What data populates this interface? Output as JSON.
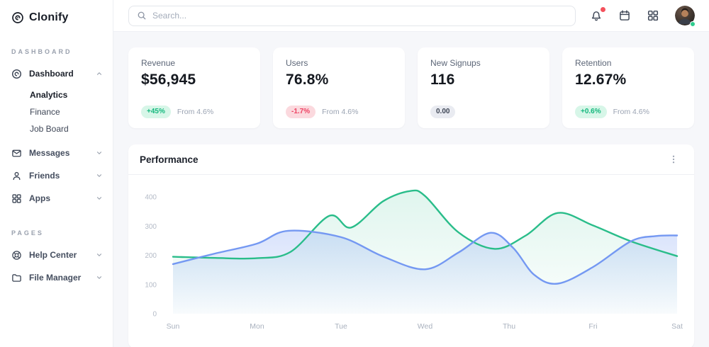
{
  "brand": {
    "name": "Clonify"
  },
  "topbar": {
    "search": {
      "placeholder": "Search...",
      "icon": "search-icon"
    },
    "icons": [
      "bell-icon",
      "calendar-icon",
      "apps-grid-icon",
      "avatar"
    ],
    "has_notification": true,
    "user_status": "online"
  },
  "sidebar": {
    "sections": [
      {
        "label": "DASHBOARD",
        "items": [
          {
            "label": "Dashboard",
            "icon": "dashboard-icon",
            "state": "expanded",
            "active": true,
            "children": [
              "Analytics",
              "Finance",
              "Job Board"
            ],
            "active_child": "Analytics"
          },
          {
            "label": "Messages",
            "icon": "mail-icon",
            "state": "collapsed"
          },
          {
            "label": "Friends",
            "icon": "user-icon",
            "state": "collapsed"
          },
          {
            "label": "Apps",
            "icon": "grid-icon",
            "state": "collapsed"
          }
        ]
      },
      {
        "label": "PAGES",
        "items": [
          {
            "label": "Help Center",
            "icon": "lifebuoy-icon",
            "state": "collapsed"
          },
          {
            "label": "File Manager",
            "icon": "folder-icon",
            "state": "collapsed"
          }
        ]
      }
    ]
  },
  "cards": [
    {
      "title": "Revenue",
      "value": "$56,945",
      "badge": "+45%",
      "badge_type": "positive",
      "note": "From 4.6%"
    },
    {
      "title": "Users",
      "value": "76.8%",
      "badge": "-1.7%",
      "badge_type": "negative",
      "note": "From 4.6%"
    },
    {
      "title": "New Signups",
      "value": "116",
      "badge": "0.00",
      "badge_type": "neutral",
      "note": ""
    },
    {
      "title": "Retention",
      "value": "12.67%",
      "badge": "+0.6%",
      "badge_type": "positive",
      "note": "From 4.6%"
    }
  ],
  "performance": {
    "title": "Performance",
    "menu_icon": "kebab-menu-icon"
  },
  "colors": {
    "series_green": "#2abd8a",
    "series_blue": "#7498f2",
    "positive": "#14b87d",
    "negative": "#ee4263",
    "notification_dot": "#f4515c",
    "online_dot": "#2fcc8e"
  },
  "chart_data": {
    "type": "area",
    "title": "Performance",
    "x_labels": [
      "Sun",
      "Mon",
      "Tue",
      "Wed",
      "Thu",
      "Fri",
      "Sat"
    ],
    "yticks": [
      0,
      100,
      200,
      300,
      400
    ],
    "ylim": [
      0,
      475
    ],
    "grid": false,
    "legend": "none",
    "series": [
      {
        "name": "green",
        "color": "#2abd8a",
        "fill_opacity": [
          0.15,
          0.01
        ],
        "points": [
          [
            0,
            195
          ],
          [
            0.5,
            191
          ],
          [
            1,
            190
          ],
          [
            1.4,
            212
          ],
          [
            1.86,
            335
          ],
          [
            2.12,
            295
          ],
          [
            2.5,
            385
          ],
          [
            2.82,
            420
          ],
          [
            3,
            403
          ],
          [
            3.4,
            278
          ],
          [
            3.83,
            222
          ],
          [
            4.2,
            268
          ],
          [
            4.58,
            345
          ],
          [
            5,
            302
          ],
          [
            5.45,
            248
          ],
          [
            6,
            197
          ]
        ]
      },
      {
        "name": "blue",
        "color": "#7498f2",
        "fill_opacity": [
          0.4,
          0.02
        ],
        "points": [
          [
            0,
            170
          ],
          [
            0.5,
            206
          ],
          [
            1,
            240
          ],
          [
            1.37,
            284
          ],
          [
            2,
            262
          ],
          [
            2.5,
            196
          ],
          [
            3,
            152
          ],
          [
            3.4,
            210
          ],
          [
            3.78,
            277
          ],
          [
            4.05,
            225
          ],
          [
            4.3,
            133
          ],
          [
            4.58,
            103
          ],
          [
            5,
            160
          ],
          [
            5.45,
            248
          ],
          [
            5.75,
            266
          ],
          [
            6,
            268
          ]
        ]
      }
    ]
  }
}
